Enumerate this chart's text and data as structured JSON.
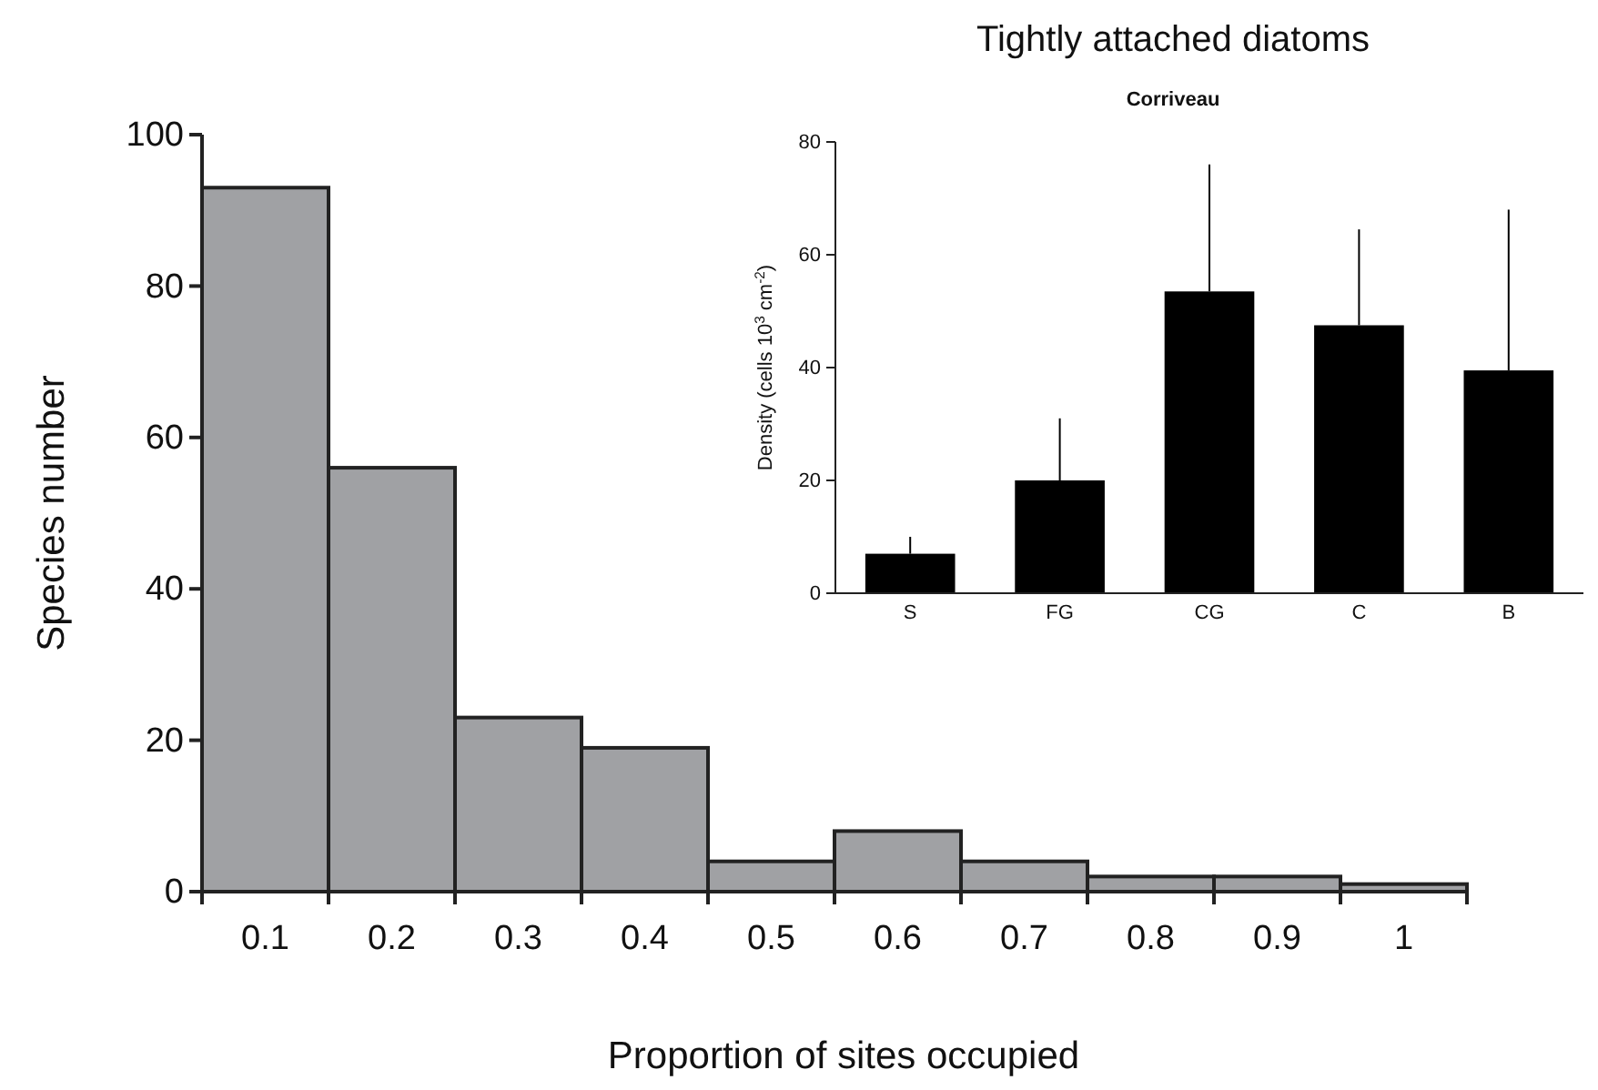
{
  "chart_data": [
    {
      "type": "bar",
      "xlabel": "Proportion of sites occupied",
      "ylabel": "Species number",
      "categories": [
        "0.1",
        "0.2",
        "0.3",
        "0.4",
        "0.5",
        "0.6",
        "0.7",
        "0.8",
        "0.9",
        "1"
      ],
      "values": [
        93,
        56,
        23,
        19,
        4,
        8,
        4,
        2,
        2,
        1
      ],
      "color": "#a0a1a4",
      "ylim": [
        0,
        100
      ],
      "yticks": [
        0,
        20,
        40,
        60,
        80,
        100
      ],
      "grid": false
    },
    {
      "type": "bar",
      "title": "Tightly attached diatoms",
      "subtitle": "Corriveau",
      "ylabel": "Density (cells 10$^{3}$ cm$^{-2}$)",
      "categories": [
        "S",
        "FG",
        "CG",
        "C",
        "B"
      ],
      "values": [
        7,
        20,
        53.5,
        47.5,
        39.5
      ],
      "errors": [
        [
          7,
          10
        ],
        [
          20,
          31
        ],
        [
          53.5,
          76
        ],
        [
          47.5,
          64.5
        ],
        [
          39.5,
          68
        ]
      ],
      "color": "#000000",
      "ylim": [
        0,
        80
      ],
      "yticks": [
        0,
        20,
        40,
        60,
        80
      ],
      "grid": false
    }
  ]
}
